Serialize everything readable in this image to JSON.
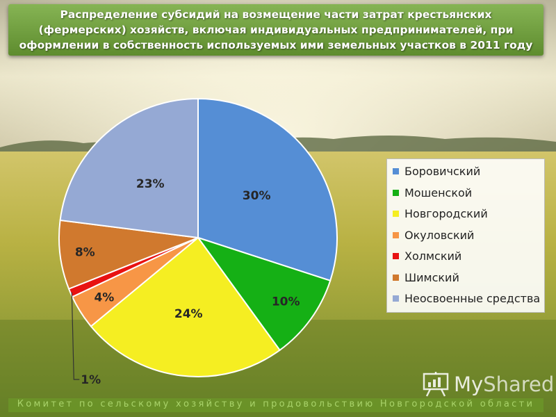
{
  "slide": {
    "title": "Распределение субсидий на возмещение части затрат крестьянских (фермерских) хозяйств, включая индивидуальных предпринимателей, при оформлении в собственность используемых ими земельных участков в 2011 году",
    "footer": "Комитет по сельскому хозяйству и продовольствию Новгородской области",
    "watermark": {
      "icon": "presentation-board-icon",
      "part1": "My",
      "part2": "Shared"
    }
  },
  "chart_data": {
    "type": "pie",
    "title": "Распределение субсидий на возмещение части затрат крестьянских (фермерских) хозяйств, включая индивидуальных предпринимателей, при оформлении в собственность используемых ими земельных участков в 2011 году",
    "start_angle": "12 o'clock",
    "direction": "clockwise",
    "legend_position": "right",
    "categories": [
      "Боровичский",
      "Мошенской",
      "Новгородский",
      "Окуловский",
      "Холмский",
      "Шимский",
      "Неосвоенные средства"
    ],
    "values": [
      30,
      10,
      24,
      4,
      1,
      8,
      23
    ],
    "labels": [
      "30%",
      "10%",
      "24%",
      "4%",
      "1%",
      "8%",
      "23%"
    ],
    "colors": [
      "#558ed5",
      "#15b015",
      "#f5ee22",
      "#f79646",
      "#e81212",
      "#d0792e",
      "#95a9d4"
    ]
  }
}
